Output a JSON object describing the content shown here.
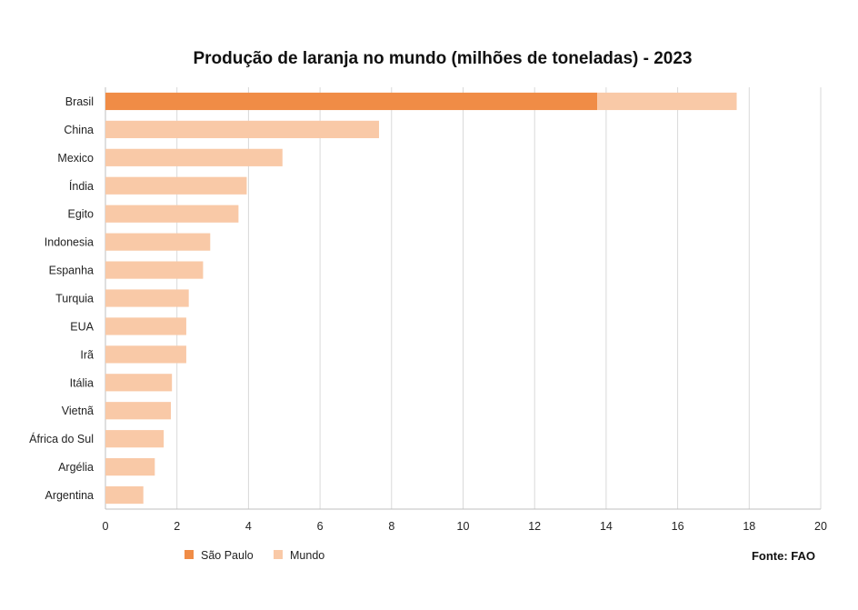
{
  "chart_data": {
    "type": "bar",
    "orientation": "horizontal",
    "stacked": true,
    "title": "Produção de laranja no mundo (milhões de toneladas) - 2023",
    "categories": [
      "Brasil",
      "China",
      "Mexico",
      "Índia",
      "Egito",
      "Indonesia",
      "Espanha",
      "Turquia",
      "EUA",
      "Irã",
      "Itália",
      "Vietnã",
      "África do Sul",
      "Argélia",
      "Argentina"
    ],
    "series": [
      {
        "name": "São Paulo",
        "color": "#f08c46",
        "values": [
          13.75,
          0,
          0,
          0,
          0,
          0,
          0,
          0,
          0,
          0,
          0,
          0,
          0,
          0,
          0
        ]
      },
      {
        "name": "Mundo",
        "color": "#f9c9a7",
        "values": [
          3.9,
          7.65,
          4.95,
          3.95,
          3.72,
          2.93,
          2.73,
          2.33,
          2.26,
          2.26,
          1.86,
          1.83,
          1.63,
          1.38,
          1.06
        ]
      }
    ],
    "xlim": [
      0,
      20
    ],
    "xticks": [
      0,
      2,
      4,
      6,
      8,
      10,
      12,
      14,
      16,
      18,
      20
    ],
    "grid": true,
    "legend": "bottom-left",
    "source": "Fonte: FAO"
  }
}
